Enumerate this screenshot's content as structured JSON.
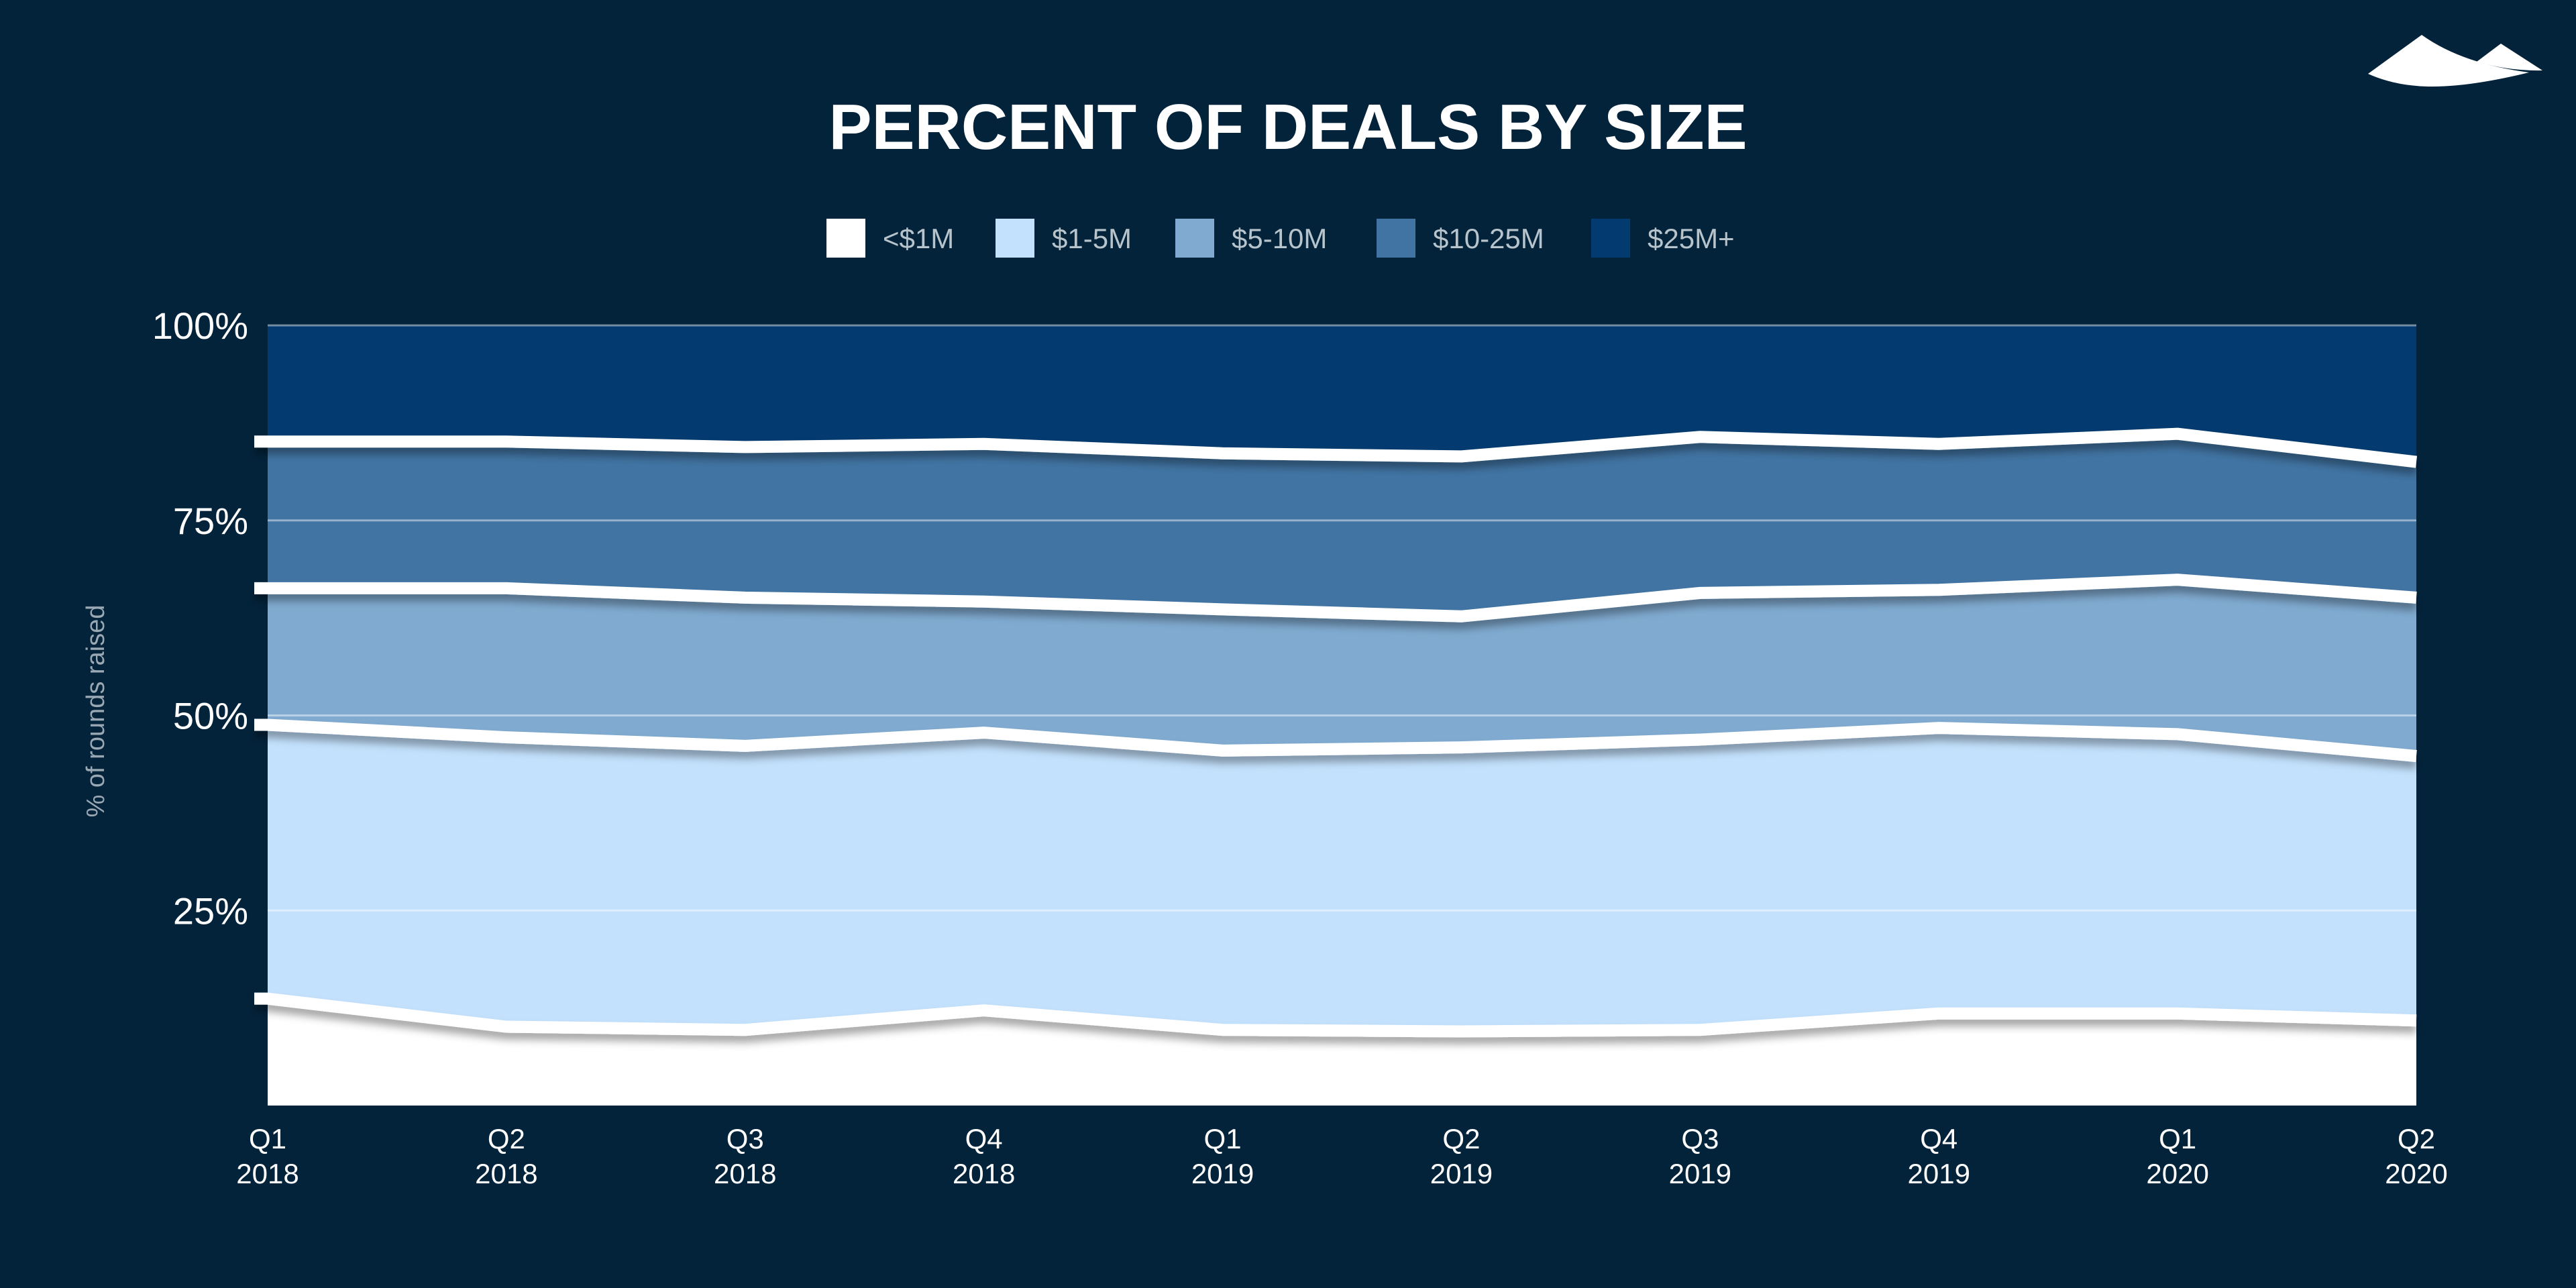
{
  "chart_data": {
    "type": "area",
    "stacked": true,
    "normalized": true,
    "title": "PERCENT OF DEALS BY SIZE",
    "xlabel": "",
    "ylabel": "% of rounds raised",
    "ylim": [
      0,
      100
    ],
    "yticks": [
      "25%",
      "50%",
      "75%",
      "100%"
    ],
    "ytick_values": [
      25,
      50,
      75,
      100
    ],
    "grid": true,
    "legend_position": "top-center",
    "categories": [
      [
        "Q1",
        "2018"
      ],
      [
        "Q2",
        "2018"
      ],
      [
        "Q3",
        "2018"
      ],
      [
        "Q4",
        "2018"
      ],
      [
        "Q1",
        "2019"
      ],
      [
        "Q2",
        "2019"
      ],
      [
        "Q3",
        "2019"
      ],
      [
        "Q4",
        "2019"
      ],
      [
        "Q1",
        "2020"
      ],
      [
        "Q2",
        "2020"
      ]
    ],
    "series": [
      {
        "name": "<$1M",
        "color": "#ffffff",
        "values": [
          13.7,
          10.1,
          9.7,
          12.2,
          9.7,
          9.5,
          9.7,
          11.8,
          11.8,
          10.9
        ]
      },
      {
        "name": "$1-5M",
        "color": "#c3e1fd",
        "values": [
          35.1,
          37.1,
          36.4,
          35.6,
          35.8,
          36.4,
          37.2,
          36.6,
          35.8,
          33.9
        ]
      },
      {
        "name": "$5-10M",
        "color": "#80aad0",
        "values": [
          17.5,
          19.1,
          19.0,
          16.8,
          18.1,
          16.8,
          18.8,
          17.7,
          19.8,
          20.3
        ]
      },
      {
        "name": "$10-25M",
        "color": "#4174a3",
        "values": [
          18.8,
          18.8,
          19.3,
          20.2,
          20.0,
          20.5,
          20.0,
          18.7,
          18.7,
          17.4
        ]
      },
      {
        "name": "$25M+",
        "color": "#033a6f",
        "values": [
          14.9,
          14.9,
          15.6,
          15.2,
          16.4,
          16.8,
          14.3,
          15.2,
          13.9,
          17.5
        ]
      }
    ]
  },
  "colors": {
    "background": "#03233b",
    "boundary_line": "#ffffff",
    "legend_text": "#b8c4cc"
  },
  "logo": {
    "icon": "mountains-logo-icon"
  }
}
